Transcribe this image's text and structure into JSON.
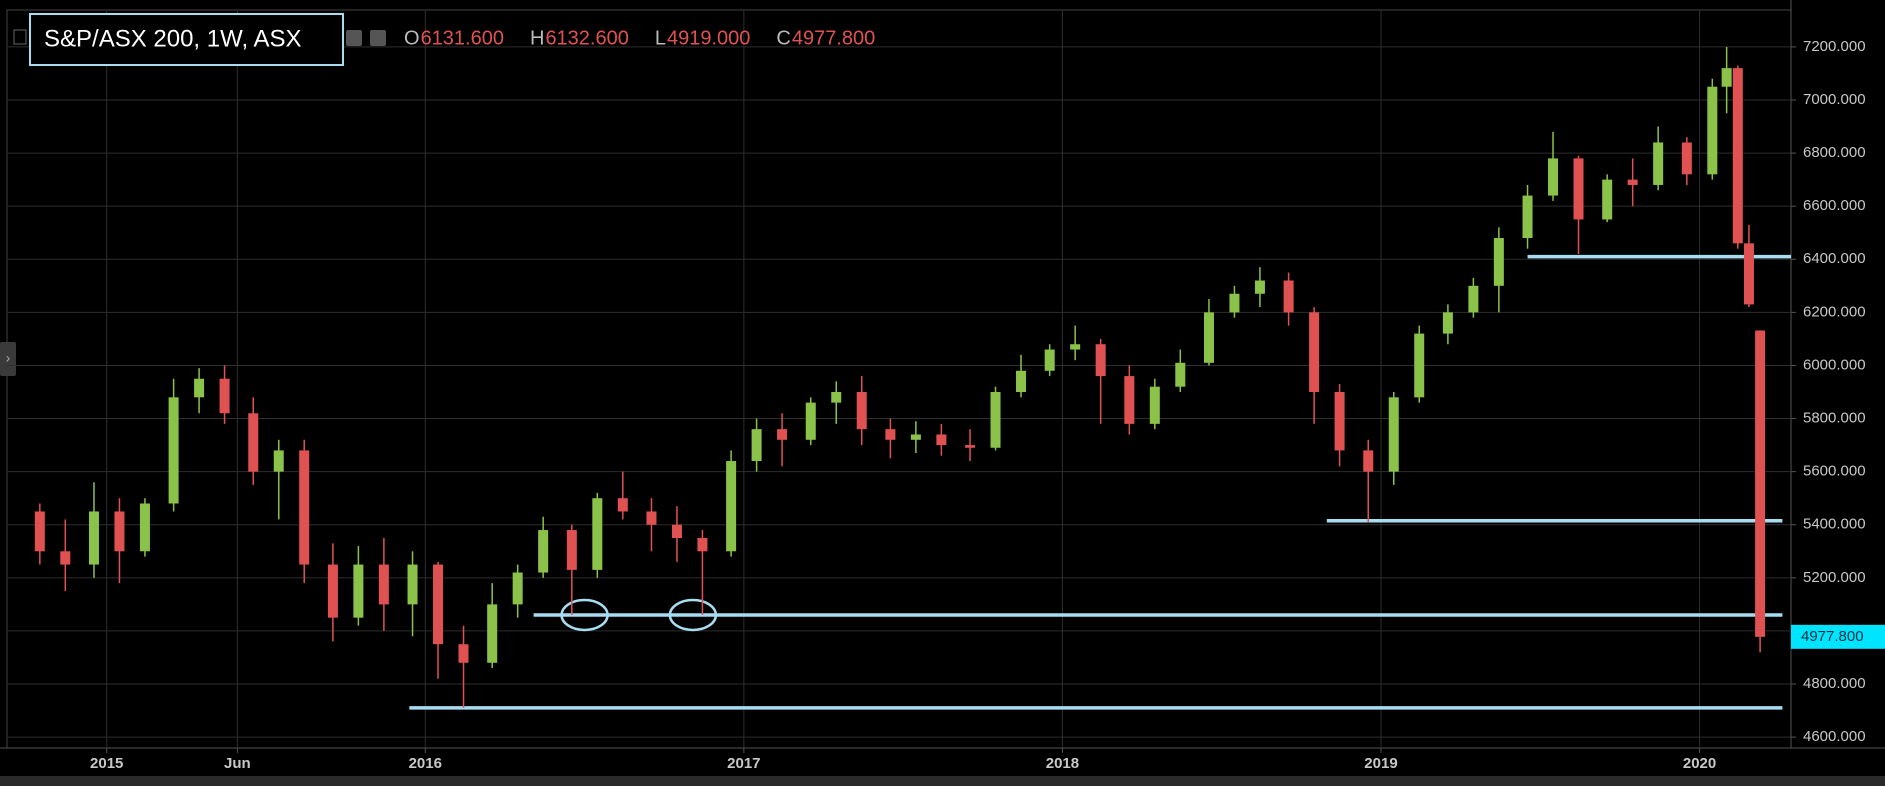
{
  "chart_data": {
    "type": "candlestick",
    "title": "S&P/ASX 200, 1W, ASX",
    "ohlc_header": [
      {
        "letter": "O",
        "value": 6131.6,
        "label": "6131.600"
      },
      {
        "letter": "H",
        "value": 6132.6,
        "label": "6132.600"
      },
      {
        "letter": "L",
        "value": 4919,
        "label": "4919.000"
      },
      {
        "letter": "C",
        "value": 4977.8,
        "label": "4977.800"
      }
    ],
    "x": [
      2014.79,
      2014.87,
      2014.96,
      2015.04,
      2015.12,
      2015.21,
      2015.29,
      2015.37,
      2015.46,
      2015.54,
      2015.62,
      2015.71,
      2015.79,
      2015.87,
      2015.96,
      2016.04,
      2016.12,
      2016.21,
      2016.29,
      2016.37,
      2016.46,
      2016.54,
      2016.62,
      2016.71,
      2016.79,
      2016.87,
      2016.96,
      2017.04,
      2017.12,
      2017.21,
      2017.29,
      2017.37,
      2017.46,
      2017.54,
      2017.62,
      2017.71,
      2017.79,
      2017.87,
      2017.96,
      2018.04,
      2018.12,
      2018.21,
      2018.29,
      2018.37,
      2018.46,
      2018.54,
      2018.62,
      2018.71,
      2018.79,
      2018.87,
      2018.96,
      2019.04,
      2019.12,
      2019.21,
      2019.29,
      2019.37,
      2019.46,
      2019.54,
      2019.62,
      2019.71,
      2019.79,
      2019.87,
      2019.96,
      2020.04,
      2020.085,
      2020.12,
      2020.155,
      2020.19
    ],
    "open": [
      5450,
      5300,
      5250,
      5450,
      5300,
      5480,
      5880,
      5950,
      5820,
      5600,
      5680,
      5250,
      5050,
      5250,
      5100,
      5250,
      4950,
      4880,
      5100,
      5220,
      5380,
      5230,
      5500,
      5450,
      5400,
      5350,
      5300,
      5640,
      5760,
      5720,
      5860,
      5900,
      5760,
      5720,
      5740,
      5700,
      5690,
      5900,
      5980,
      6060,
      6080,
      5960,
      5780,
      5920,
      6010,
      6200,
      6270,
      6320,
      6200,
      5900,
      5680,
      5600,
      5880,
      6120,
      6200,
      6300,
      6480,
      6640,
      6780,
      6550,
      6700,
      6680,
      6840,
      6720,
      7050,
      7120,
      6460,
      6131.6
    ],
    "high": [
      5480,
      5420,
      5560,
      5500,
      5500,
      5950,
      5990,
      6000,
      5880,
      5720,
      5720,
      5330,
      5320,
      5350,
      5300,
      5260,
      5020,
      5180,
      5250,
      5430,
      5400,
      5520,
      5600,
      5500,
      5470,
      5380,
      5680,
      5800,
      5820,
      5880,
      5940,
      5960,
      5800,
      5790,
      5780,
      5760,
      5920,
      6040,
      6080,
      6150,
      6100,
      6000,
      5950,
      6060,
      6250,
      6300,
      6370,
      6350,
      6220,
      5930,
      5720,
      5900,
      6150,
      6230,
      6330,
      6520,
      6680,
      6880,
      6790,
      6720,
      6780,
      6900,
      6860,
      7080,
      7200,
      7130,
      6530,
      6132.6
    ],
    "low": [
      5250,
      5150,
      5200,
      5180,
      5280,
      5450,
      5820,
      5780,
      5550,
      5420,
      5180,
      4960,
      5020,
      5000,
      4980,
      4820,
      4710,
      4860,
      5050,
      5200,
      5060,
      5200,
      5420,
      5300,
      5260,
      5060,
      5280,
      5600,
      5620,
      5700,
      5780,
      5700,
      5650,
      5670,
      5660,
      5640,
      5680,
      5880,
      5960,
      6020,
      5780,
      5740,
      5760,
      5900,
      6000,
      6180,
      6220,
      6150,
      5780,
      5620,
      5410,
      5550,
      5860,
      6080,
      6180,
      6200,
      6440,
      6620,
      6420,
      6540,
      6600,
      6660,
      6680,
      6700,
      6950,
      6440,
      6220,
      4919
    ],
    "close": [
      5300,
      5250,
      5450,
      5300,
      5480,
      5880,
      5950,
      5820,
      5600,
      5680,
      5250,
      5050,
      5250,
      5100,
      5250,
      4950,
      4880,
      5100,
      5220,
      5380,
      5230,
      5500,
      5450,
      5400,
      5350,
      5300,
      5640,
      5760,
      5720,
      5860,
      5900,
      5760,
      5720,
      5740,
      5700,
      5690,
      5900,
      5980,
      6060,
      6080,
      5960,
      5780,
      5920,
      6010,
      6200,
      6270,
      6320,
      6200,
      5900,
      5680,
      5600,
      5880,
      6120,
      6200,
      6300,
      6480,
      6640,
      6780,
      6550,
      6700,
      6680,
      6840,
      6720,
      7050,
      7120,
      6460,
      6230,
      4977.8
    ],
    "up_color": "#8bc34a",
    "down_color": "#e05252",
    "xlim": [
      2014.687,
      2020.287
    ],
    "ylim": [
      4559,
      7339
    ],
    "xticks": [
      {
        "value": 2015,
        "label": "2015"
      },
      {
        "value": 2015.41,
        "label": "Jun"
      },
      {
        "value": 2016,
        "label": "2016"
      },
      {
        "value": 2017,
        "label": "2017"
      },
      {
        "value": 2018,
        "label": "2018"
      },
      {
        "value": 2019,
        "label": "2019"
      },
      {
        "value": 2020,
        "label": "2020"
      }
    ],
    "yticks": [
      {
        "value": 4600,
        "label": "4600.000"
      },
      {
        "value": 4800,
        "label": "4800.000"
      },
      {
        "value": 5000,
        "label": "5000.000"
      },
      {
        "value": 5200,
        "label": "5200.000"
      },
      {
        "value": 5400,
        "label": "5400.000"
      },
      {
        "value": 5600,
        "label": "5600.000"
      },
      {
        "value": 5800,
        "label": "5800.000"
      },
      {
        "value": 6000,
        "label": "6000.000"
      },
      {
        "value": 6200,
        "label": "6200.000"
      },
      {
        "value": 6400,
        "label": "6400.000"
      },
      {
        "value": 6600,
        "label": "6600.000"
      },
      {
        "value": 6800,
        "label": "6800.000"
      },
      {
        "value": 7000,
        "label": "7000.000"
      },
      {
        "value": 7200,
        "label": "7200.000"
      }
    ],
    "grid": true,
    "last_price": {
      "value": 4977.8,
      "label": "4977.800"
    },
    "annotation_color": "#a8dcf0",
    "support_lines": [
      {
        "y": 6410,
        "x0": 2019.46,
        "x1": 2020.287
      },
      {
        "y": 5415,
        "x0": 2018.83,
        "x1": 2020.26
      },
      {
        "y": 5060,
        "x0": 2016.34,
        "x1": 2020.26
      },
      {
        "y": 4710,
        "x0": 2015.95,
        "x1": 2020.26
      }
    ],
    "circles": [
      {
        "x": 2016.5,
        "y": 5060
      },
      {
        "x": 2016.84,
        "y": 5060
      }
    ]
  }
}
